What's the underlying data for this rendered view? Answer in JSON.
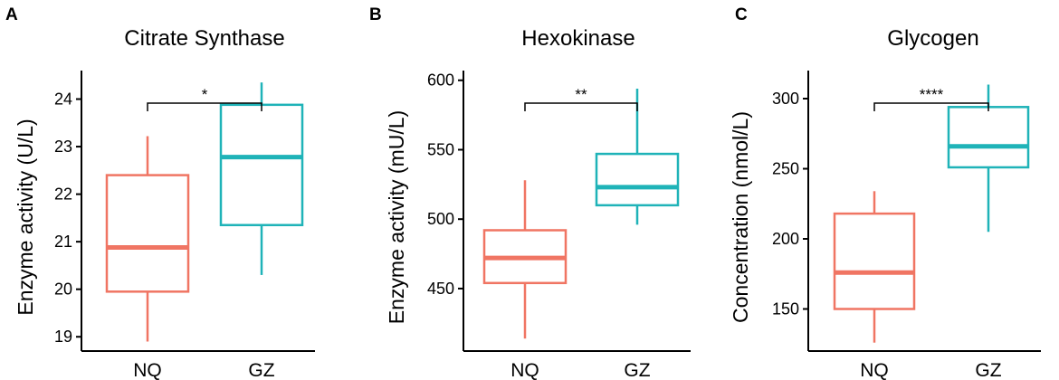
{
  "colors": {
    "NQ": "#F07563",
    "GZ": "#1FB3B8"
  },
  "chart_data": [
    {
      "type": "box",
      "panel": "A",
      "title": "Citrate Synthase",
      "xlabel": "",
      "ylabel": "Enzyme activity (U/L)",
      "ylim": [
        18.7,
        24.6
      ],
      "yticks": [
        19,
        20,
        21,
        22,
        23,
        24
      ],
      "categories": [
        "NQ",
        "GZ"
      ],
      "boxes": [
        {
          "name": "NQ",
          "whisker_low": 18.9,
          "q1": 19.95,
          "median": 20.88,
          "q3": 22.4,
          "whisker_high": 23.22
        },
        {
          "name": "GZ",
          "whisker_low": 20.3,
          "q1": 21.35,
          "median": 22.78,
          "q3": 23.88,
          "whisker_high": 24.35
        }
      ],
      "significance": "*"
    },
    {
      "type": "box",
      "panel": "B",
      "title": "Hexokinase",
      "xlabel": "",
      "ylabel": "Enzyme activity (mU/L)",
      "ylim": [
        405,
        607
      ],
      "yticks": [
        450,
        500,
        550,
        600
      ],
      "categories": [
        "NQ",
        "GZ"
      ],
      "boxes": [
        {
          "name": "NQ",
          "whisker_low": 414,
          "q1": 454,
          "median": 472,
          "q3": 492,
          "whisker_high": 528
        },
        {
          "name": "GZ",
          "whisker_low": 496,
          "q1": 510,
          "median": 523,
          "q3": 547,
          "whisker_high": 594
        }
      ],
      "significance": "**"
    },
    {
      "type": "box",
      "panel": "C",
      "title": "Glycogen",
      "xlabel": "",
      "ylabel": "Concentration (nmol/L)",
      "ylim": [
        120,
        320
      ],
      "yticks": [
        150,
        200,
        250,
        300
      ],
      "categories": [
        "NQ",
        "GZ"
      ],
      "boxes": [
        {
          "name": "NQ",
          "whisker_low": 126,
          "q1": 150,
          "median": 176,
          "q3": 218,
          "whisker_high": 234
        },
        {
          "name": "GZ",
          "whisker_low": 205,
          "q1": 251,
          "median": 266,
          "q3": 294,
          "whisker_high": 310
        }
      ],
      "significance": "****"
    }
  ]
}
